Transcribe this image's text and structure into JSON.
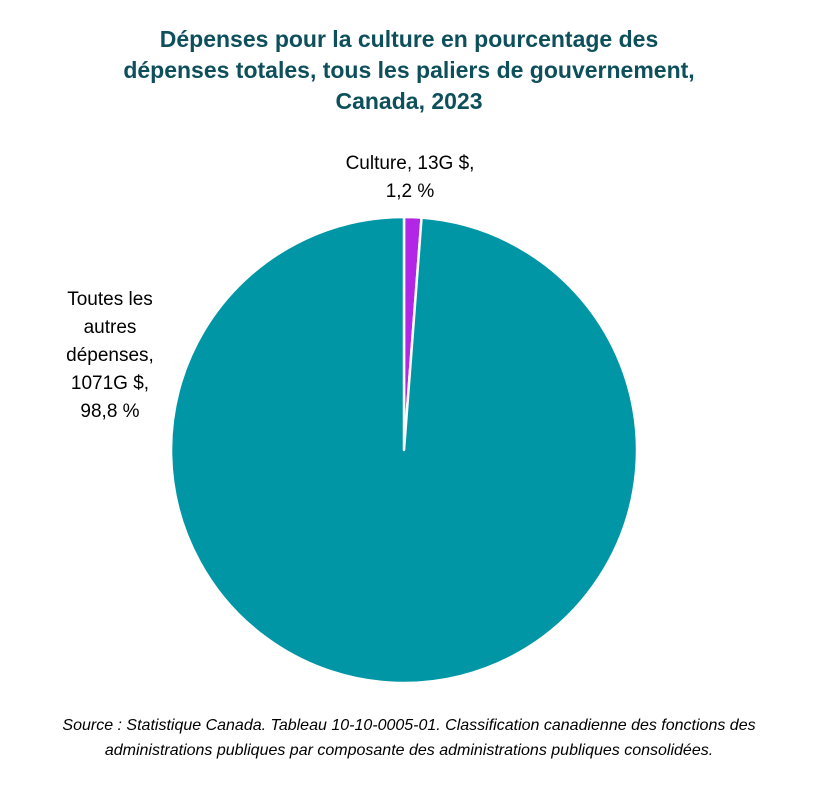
{
  "chart_data": {
    "type": "pie",
    "title_lines": [
      "Dépenses pour la culture en pourcentage des",
      "dépenses totales, tous les paliers de gouvernement,",
      "Canada, 2023"
    ],
    "slices": [
      {
        "name": "Culture",
        "value_billions": 13,
        "percent": 1.2,
        "color": "#b226e6",
        "label_lines": [
          "Culture, 13G $,",
          "1,2 %"
        ]
      },
      {
        "name": "Toutes les autres dépenses",
        "value_billions": 1071,
        "percent": 98.8,
        "color": "#0096a5",
        "label_lines": [
          "Toutes les",
          "autres",
          "dépenses,",
          "1071G $,",
          "98,8 %"
        ]
      }
    ],
    "legend": "none"
  },
  "source_lines": [
    "Source : Statistique Canada. Tableau 10-10-0005-01. Classification canadienne des fonctions des",
    "administrations publiques par composante des administrations publiques consolidées."
  ]
}
